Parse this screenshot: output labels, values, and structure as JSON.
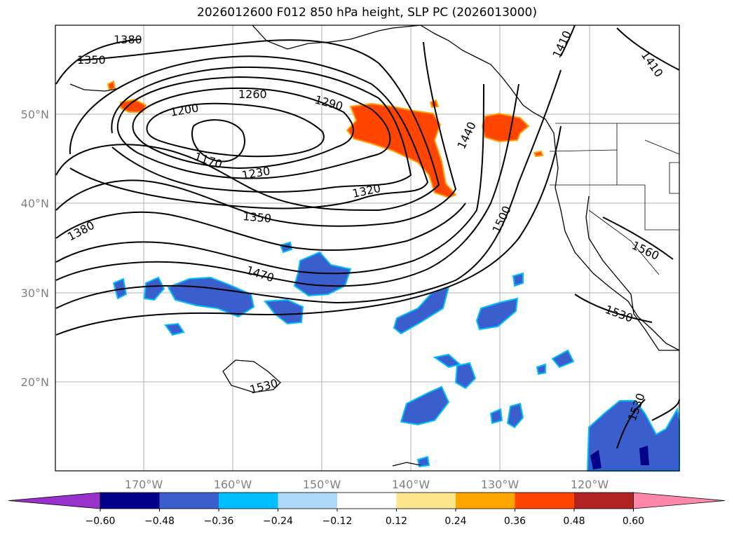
{
  "title": "2026012600 F012 850 hPa height, SLP PC (2026013000)",
  "colors": {
    "contour": "#000000",
    "grid": "#b0b0b0",
    "axis_label": "#808080",
    "coast": "#000000"
  },
  "map": {
    "lon_labels": [
      "170°W",
      "160°W",
      "150°W",
      "140°W",
      "130°W",
      "120°W"
    ],
    "lat_labels": [
      "50°N",
      "40°N",
      "30°N",
      "20°N"
    ],
    "contour_labels": [
      "1380",
      "1350",
      "1260",
      "1290",
      "1200",
      "1170",
      "1230",
      "1320",
      "1350",
      "1380",
      "1440",
      "1410",
      "1410",
      "1500",
      "1470",
      "1560",
      "1530",
      "1530",
      "1530"
    ]
  },
  "colorbar": {
    "ticks": [
      "−0.60",
      "−0.48",
      "−0.36",
      "−0.24",
      "−0.12",
      "0.12",
      "0.24",
      "0.36",
      "0.48",
      "0.60"
    ],
    "colors": [
      "#9932cc",
      "#00008b",
      "#3a5fcd",
      "#00bfff",
      "#add8f8",
      "#ffffff",
      "#fce58b",
      "#ffa500",
      "#ff4500",
      "#b22222",
      "#ff88aa"
    ]
  }
}
